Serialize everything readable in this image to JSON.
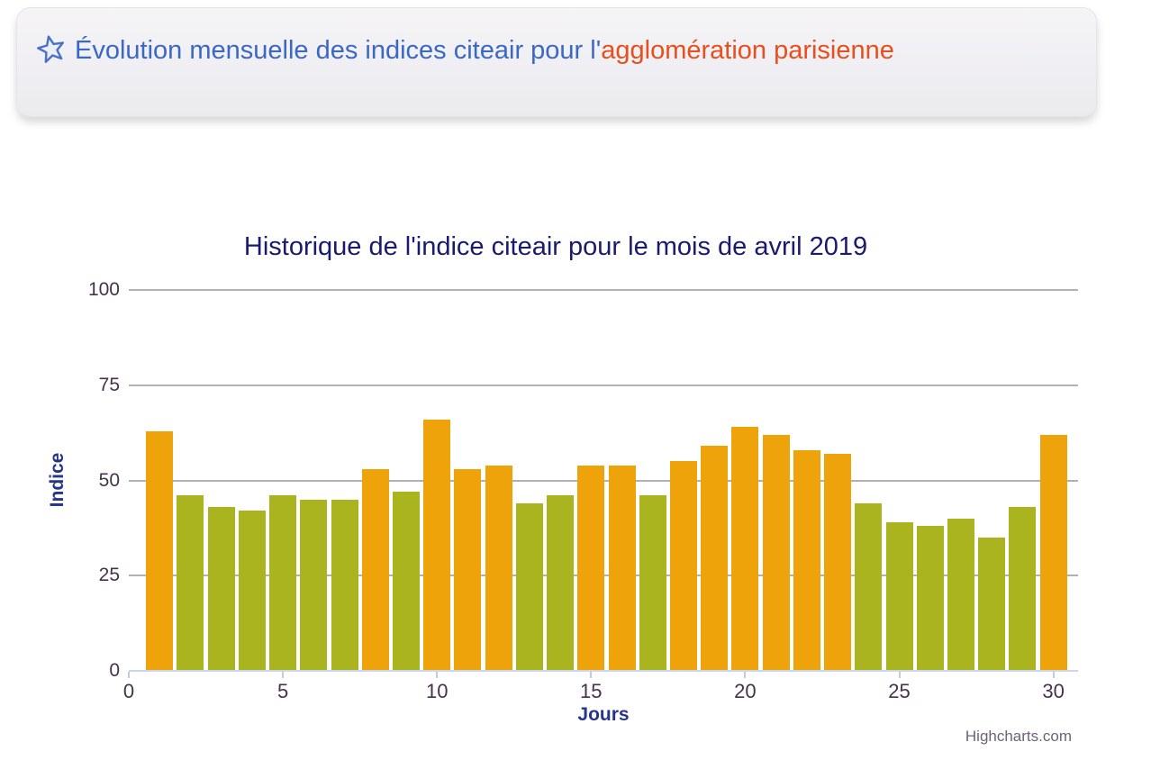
{
  "header": {
    "icon": "star",
    "title_main": "Évolution mensuelle des indices citeair pour l'",
    "title_highlight": "agglomération parisienne"
  },
  "chart_data": {
    "type": "bar",
    "title": "Historique de l'indice citeair pour le mois de avril 2019",
    "xlabel": "Jours",
    "ylabel": "Indice",
    "x": [
      1,
      2,
      3,
      4,
      5,
      6,
      7,
      8,
      9,
      10,
      11,
      12,
      13,
      14,
      15,
      16,
      17,
      18,
      19,
      20,
      21,
      22,
      23,
      24,
      25,
      26,
      27,
      28,
      29,
      30
    ],
    "values": [
      63,
      46,
      43,
      42,
      46,
      45,
      45,
      53,
      47,
      66,
      53,
      54,
      44,
      46,
      54,
      54,
      46,
      55,
      59,
      64,
      62,
      58,
      57,
      44,
      39,
      38,
      40,
      35,
      43,
      62
    ],
    "color_low": "#a9b41e",
    "color_high": "#efa30a",
    "color_threshold": 50,
    "ylim": [
      0,
      100
    ],
    "xlim": [
      0,
      30.8
    ],
    "yticks": [
      0,
      25,
      50,
      75,
      100
    ],
    "xticks": [
      0,
      5,
      10,
      15,
      20,
      25,
      30
    ],
    "grid": true,
    "legend": false,
    "credits": "Highcharts.com"
  },
  "colors": {
    "header_text": "#3b68c5",
    "header_highlight": "#e94e1b",
    "chart_title": "#1a1a70",
    "axis_label": "#46324a",
    "axis_title": "#26358c",
    "gridline": "#b3afb6",
    "axis_line": "#ccd6eb",
    "credits": "#6e6276"
  }
}
